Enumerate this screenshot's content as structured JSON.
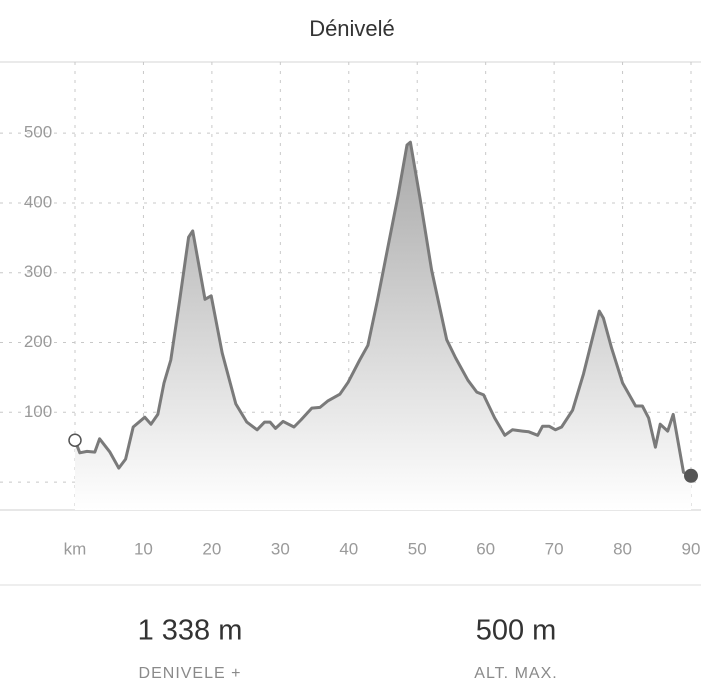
{
  "chart_data": {
    "type": "area",
    "title": "Dénivelé",
    "x": [
      0,
      0.7,
      1.75,
      2.9,
      3.6,
      5.1,
      6.4,
      7.4,
      8.5,
      10.2,
      11.1,
      12.1,
      13,
      14,
      15.3,
      16.6,
      17.2,
      19,
      19.9,
      21.5,
      23.5,
      25.1,
      26.6,
      27.7,
      28.5,
      29.3,
      30.4,
      32,
      33,
      34.6,
      35.8,
      36.9,
      38.7,
      39.9,
      41.6,
      42.8,
      44.2,
      45.8,
      47.2,
      48.5,
      49,
      50.4,
      52.1,
      54.3,
      55.6,
      57.4,
      58.7,
      59.7,
      61.3,
      62.8,
      63.9,
      65.4,
      66.3,
      67.6,
      68.3,
      69.3,
      70.2,
      71.1,
      72.7,
      74.3,
      75.8,
      76.6,
      77.2,
      78.4,
      80,
      81.9,
      82.9,
      83.8,
      84.8,
      85.5,
      86.6,
      87.4,
      88.9,
      90
    ],
    "values": [
      60,
      42,
      44,
      43,
      62,
      43,
      20,
      33,
      79,
      93,
      83,
      97,
      142,
      175,
      261,
      351,
      360,
      262,
      267,
      185,
      112,
      86,
      75,
      86,
      86,
      77,
      87,
      79,
      89,
      106,
      107,
      116,
      126,
      143,
      175,
      196,
      261,
      341,
      411,
      483,
      487,
      407,
      304,
      204,
      178,
      146,
      129,
      125,
      92,
      67,
      75,
      73,
      72,
      67,
      80,
      80,
      75,
      79,
      103,
      155,
      214,
      245,
      235,
      192,
      142,
      109,
      109,
      92,
      50,
      83,
      73,
      97,
      14,
      9
    ],
    "color": "#7a7a7a",
    "xlim": [
      0,
      90
    ],
    "xticks": [
      {
        "value": 0,
        "label": "km"
      },
      10,
      20,
      30,
      40,
      50,
      60,
      70,
      80,
      90
    ],
    "ylim": [
      -40,
      602
    ],
    "yticks": [
      100,
      200,
      300,
      400,
      500
    ],
    "grid": true
  },
  "summary": [
    {
      "value": "1 338 m",
      "label": "DENIVELE +"
    },
    {
      "value": "500 m",
      "label": "ALT. MAX."
    }
  ]
}
